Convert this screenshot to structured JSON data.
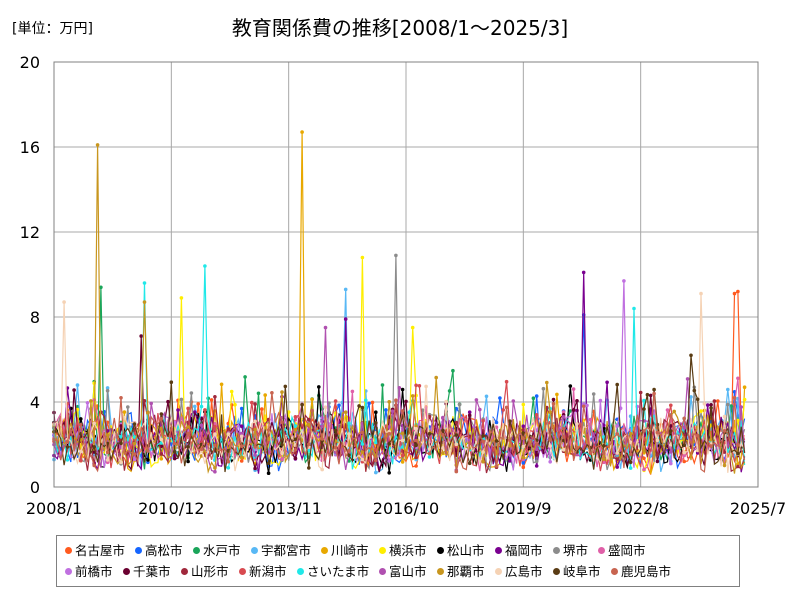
{
  "unit_label": "[単位：万円]",
  "chart_data": {
    "type": "line",
    "title": "教育関係費の推移[2008/1～2025/3]",
    "xlabel": "",
    "ylabel": "",
    "ylim": [
      0,
      20
    ],
    "yticks": [
      0,
      4,
      8,
      12,
      16,
      20
    ],
    "xlim_months": [
      0,
      210
    ],
    "xticks": [
      {
        "label": "2008/1",
        "month": 0
      },
      {
        "label": "2010/12",
        "month": 35
      },
      {
        "label": "2013/11",
        "month": 70
      },
      {
        "label": "2016/10",
        "month": 105
      },
      {
        "label": "2019/9",
        "month": 140
      },
      {
        "label": "2022/8",
        "month": 175
      },
      {
        "label": "2025/7",
        "month": 210
      }
    ],
    "grid": true,
    "legend_position": "bottom",
    "series": [
      {
        "name": "名古屋市",
        "color": "#ff5a1f",
        "peaks": [
          [
            204,
            9.2
          ],
          [
            203,
            9.1
          ]
        ]
      },
      {
        "name": "高松市",
        "color": "#1565ff",
        "peaks": [
          [
            158,
            8.1
          ]
        ]
      },
      {
        "name": "水戸市",
        "color": "#1aa55a",
        "peaks": [
          [
            14,
            9.4
          ],
          [
            98,
            4.8
          ]
        ]
      },
      {
        "name": "宇都宮市",
        "color": "#58b8f5",
        "peaks": [
          [
            87,
            9.3
          ]
        ]
      },
      {
        "name": "川崎市",
        "color": "#e8a800",
        "peaks": [
          [
            74,
            16.7
          ]
        ]
      },
      {
        "name": "横浜市",
        "color": "#ffee00",
        "peaks": [
          [
            92,
            10.8
          ],
          [
            38,
            8.9
          ],
          [
            107,
            7.5
          ]
        ]
      },
      {
        "name": "松山市",
        "color": "#000000",
        "peaks": [
          [
            18,
            1.9
          ]
        ]
      },
      {
        "name": "福岡市",
        "color": "#7a0090",
        "peaks": [
          [
            158,
            10.1
          ],
          [
            87,
            7.9
          ]
        ]
      },
      {
        "name": "堺市",
        "color": "#8c8c8c",
        "peaks": [
          [
            102,
            10.9
          ]
        ]
      },
      {
        "name": "盛岡市",
        "color": "#e060a8",
        "peaks": [
          [
            12,
            4.1
          ]
        ]
      },
      {
        "name": "前橋市",
        "color": "#c070e0",
        "peaks": [
          [
            170,
            9.7
          ]
        ]
      },
      {
        "name": "千葉市",
        "color": "#6a0030",
        "peaks": [
          [
            26,
            7.1
          ]
        ]
      },
      {
        "name": "山形市",
        "color": "#a0283c",
        "peaks": [
          [
            60,
            3.9
          ]
        ]
      },
      {
        "name": "新潟市",
        "color": "#d84a50",
        "peaks": [
          [
            40,
            3.7
          ]
        ]
      },
      {
        "name": "さいたま市",
        "color": "#20e8e8",
        "peaks": [
          [
            45,
            10.4
          ],
          [
            27,
            9.6
          ],
          [
            173,
            8.4
          ]
        ]
      },
      {
        "name": "富山市",
        "color": "#b050b0",
        "peaks": [
          [
            81,
            7.5
          ]
        ]
      },
      {
        "name": "那覇市",
        "color": "#c8961e",
        "peaks": [
          [
            13,
            16.1
          ],
          [
            27,
            8.7
          ]
        ]
      },
      {
        "name": "広島市",
        "color": "#f5d2b4",
        "peaks": [
          [
            3,
            8.7
          ],
          [
            193,
            9.1
          ]
        ]
      },
      {
        "name": "岐阜市",
        "color": "#5a3c14",
        "peaks": [
          [
            190,
            6.2
          ]
        ]
      },
      {
        "name": "鹿児島市",
        "color": "#c86450",
        "peaks": [
          [
            20,
            4.2
          ]
        ]
      }
    ]
  }
}
